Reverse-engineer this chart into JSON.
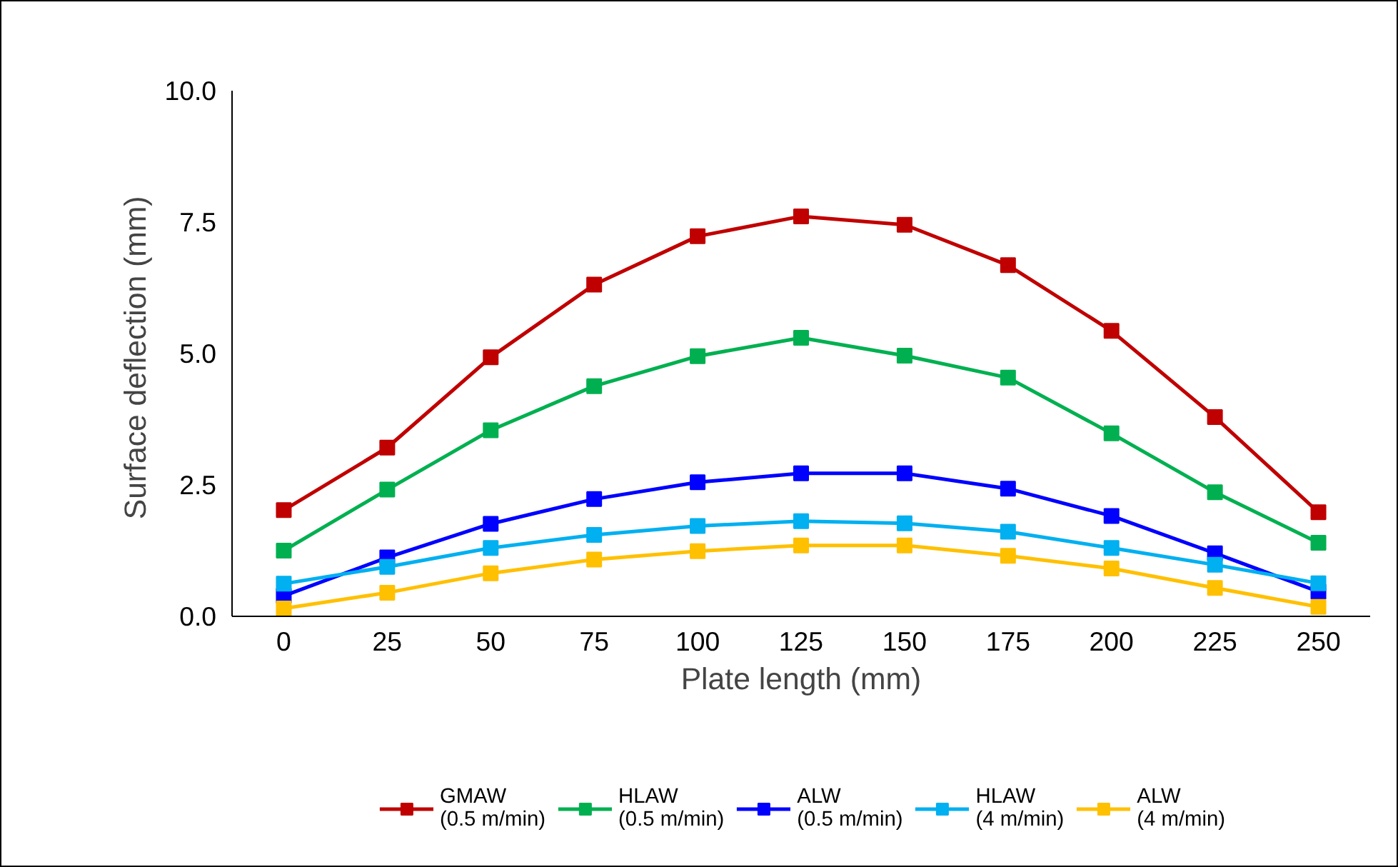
{
  "chart_data": {
    "type": "line",
    "xlabel": "Plate length (mm)",
    "ylabel": "Surface  deflection (mm)",
    "categories": [
      "0",
      "25",
      "50",
      "75",
      "100",
      "125",
      "150",
      "175",
      "200",
      "225",
      "250"
    ],
    "series": [
      {
        "name": "GMAW\n(0.5 m/min)",
        "color": "#c00000",
        "values": [
          2.02,
          3.21,
          4.93,
          6.31,
          7.23,
          7.61,
          7.45,
          6.68,
          5.43,
          3.79,
          1.98
        ]
      },
      {
        "name": "HLAW\n(0.5 m/min)",
        "color": "#00b050",
        "values": [
          1.25,
          2.41,
          3.54,
          4.38,
          4.95,
          5.3,
          4.96,
          4.54,
          3.48,
          2.36,
          1.4
        ]
      },
      {
        "name": "ALW\n(0.5 m/min)",
        "color": "#0000ff",
        "values": [
          0.39,
          1.12,
          1.76,
          2.23,
          2.55,
          2.72,
          2.72,
          2.43,
          1.91,
          1.2,
          0.47
        ]
      },
      {
        "name": "HLAW\n(4 m/min)",
        "color": "#00b0f0",
        "values": [
          0.62,
          0.94,
          1.3,
          1.55,
          1.72,
          1.81,
          1.77,
          1.61,
          1.3,
          0.98,
          0.63
        ]
      },
      {
        "name": "ALW\n(4 m/min)",
        "color": "#ffc000",
        "values": [
          0.15,
          0.45,
          0.82,
          1.08,
          1.24,
          1.35,
          1.35,
          1.15,
          0.91,
          0.54,
          0.18
        ]
      }
    ],
    "ylim": [
      0,
      10
    ],
    "yticks": [
      {
        "value": 0,
        "label": "0.0"
      },
      {
        "value": 2.5,
        "label": "2.5"
      },
      {
        "value": 5,
        "label": "5.0"
      },
      {
        "value": 7.5,
        "label": "7.5"
      },
      {
        "value": 10,
        "label": "10.0"
      }
    ],
    "grid": false,
    "legend": "bottom",
    "marker": "square",
    "line_style": "solid"
  }
}
